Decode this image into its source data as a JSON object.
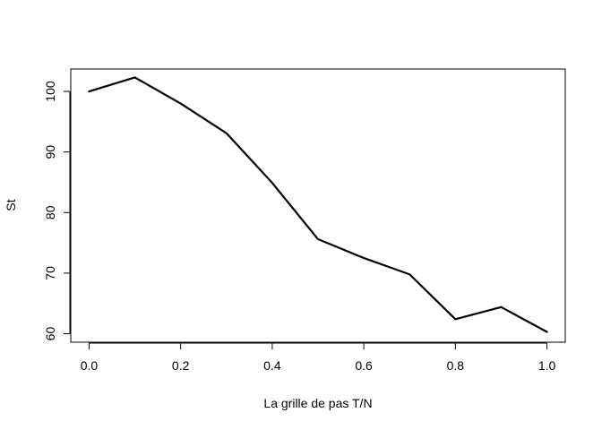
{
  "chart_data": {
    "type": "line",
    "title": "",
    "xlabel": "La grille de pas T/N",
    "ylabel": "St",
    "x": [
      0.0,
      0.1,
      0.2,
      0.3,
      0.4,
      0.5,
      0.6,
      0.7,
      0.8,
      0.9,
      1.0
    ],
    "series": [
      {
        "values": [
          100.0,
          102.3,
          98.0,
          93.1,
          84.9,
          75.6,
          72.5,
          69.8,
          62.4,
          64.4,
          60.3
        ]
      }
    ],
    "xlim": [
      -0.04,
      1.04
    ],
    "ylim": [
      58.6,
      103.7
    ],
    "xticks": [
      0.0,
      0.2,
      0.4,
      0.6,
      0.8,
      1.0
    ],
    "xtick_labels": [
      "0.0",
      "0.2",
      "0.4",
      "0.6",
      "0.8",
      "1.0"
    ],
    "yticks": [
      60,
      70,
      80,
      90,
      100
    ],
    "ytick_labels": [
      "60",
      "70",
      "80",
      "90",
      "100"
    ],
    "grid": false,
    "line_color": "#000000"
  }
}
